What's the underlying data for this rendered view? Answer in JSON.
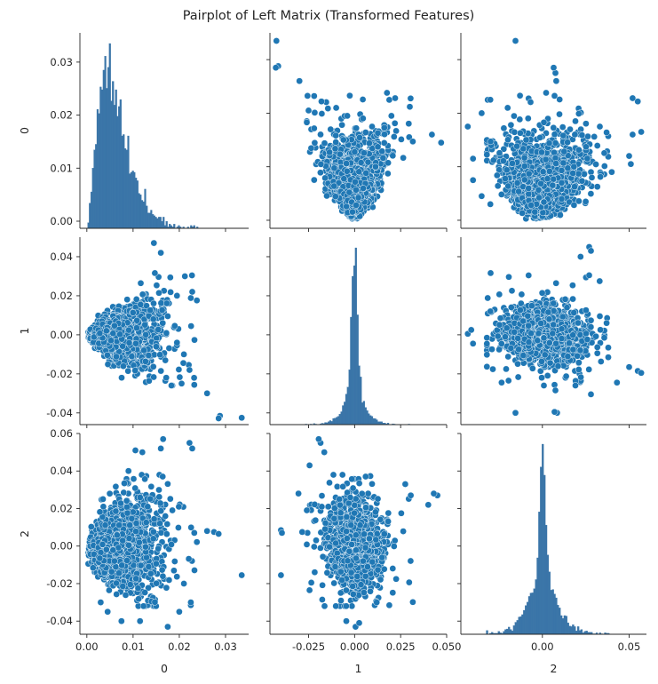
{
  "chart_data": {
    "type": "pairplot",
    "title": "Pairplot of Left Matrix (Transformed Features)",
    "variables": [
      "0",
      "1",
      "2"
    ],
    "colors": {
      "marker": "#1f77b4",
      "hist": "#3a75a8",
      "edge": "#ffffff",
      "axis": "#262626"
    },
    "axes": {
      "0": {
        "range": [
          -0.0015,
          0.035
        ],
        "ticks": [
          0.0,
          0.01,
          0.02,
          0.03
        ],
        "tick_labels": [
          "0.00",
          "0.01",
          "0.02",
          "0.03"
        ],
        "y_ticks": [
          0.0,
          0.01,
          0.02,
          0.03
        ],
        "y_tick_labels": [
          "0.00",
          "0.01",
          "0.02",
          "0.03"
        ]
      },
      "1": {
        "range": [
          -0.046,
          0.05
        ],
        "ticks": [
          -0.025,
          0.0,
          0.025,
          0.05
        ],
        "tick_labels": [
          "-0.025",
          "0.000",
          "0.025",
          "0.050"
        ],
        "y_ticks": [
          -0.04,
          -0.02,
          0.0,
          0.02,
          0.04
        ],
        "y_tick_labels": [
          "-0.04",
          "-0.02",
          "0.00",
          "0.02",
          "0.04"
        ]
      },
      "2": {
        "range": [
          -0.047,
          0.06
        ],
        "ticks": [
          0.0,
          0.05
        ],
        "tick_labels": [
          "0.00",
          "0.05"
        ],
        "y_ticks": [
          -0.04,
          -0.02,
          0.0,
          0.02,
          0.04,
          0.06
        ],
        "y_tick_labels": [
          "-0.04",
          "-0.02",
          "0.00",
          "0.02",
          "0.04",
          "0.06"
        ]
      }
    },
    "diagonal": {
      "0": {
        "shape": "right-skewed",
        "peak": 0.0033,
        "spread": 0.0055,
        "max_density_label": 0.0335
      },
      "1": {
        "shape": "peaked",
        "center": 0.0,
        "spread": 0.004
      },
      "2": {
        "shape": "peaked",
        "center": 0.0,
        "spread": 0.0045
      }
    },
    "outliers": {
      "0_1": [
        [
          0.0335,
          -0.0425
        ],
        [
          0.0288,
          -0.0415
        ],
        [
          0.0285,
          -0.0428
        ],
        [
          0.026,
          -0.03
        ],
        [
          0.0232,
          -0.022
        ],
        [
          0.0222,
          -0.018
        ],
        [
          0.0205,
          -0.025
        ],
        [
          0.021,
          -0.01
        ],
        [
          0.0195,
          -0.004
        ],
        [
          0.0195,
          0.02
        ],
        [
          0.0228,
          0.022
        ],
        [
          0.0212,
          0.03
        ],
        [
          0.0145,
          0.047
        ],
        [
          0.016,
          0.042
        ]
      ],
      "0_2": [
        [
          0.0335,
          -0.0155
        ],
        [
          0.0275,
          0.0075
        ],
        [
          0.0285,
          0.0065
        ],
        [
          0.026,
          0.008
        ],
        [
          0.0222,
          0.055
        ],
        [
          0.0228,
          0.052
        ],
        [
          0.0165,
          0.057
        ],
        [
          0.016,
          0.052
        ],
        [
          0.012,
          0.05
        ],
        [
          0.0105,
          0.051
        ],
        [
          0.009,
          0.04
        ],
        [
          0.0035,
          0.025
        ],
        [
          0.003,
          -0.03
        ],
        [
          0.0045,
          -0.035
        ],
        [
          0.0075,
          -0.04
        ],
        [
          0.0115,
          -0.04
        ],
        [
          0.0175,
          -0.043
        ],
        [
          0.02,
          -0.035
        ],
        [
          0.0225,
          -0.03
        ],
        [
          0.021,
          -0.02
        ]
      ],
      "1_2": [
        [
          -0.04,
          0.0085
        ],
        [
          -0.0395,
          0.007
        ],
        [
          -0.04,
          -0.0155
        ],
        [
          -0.0245,
          0.043
        ],
        [
          -0.0305,
          0.028
        ],
        [
          -0.0285,
          0.0075
        ],
        [
          -0.0235,
          -0.0195
        ],
        [
          -0.0245,
          -0.0235
        ],
        [
          -0.0185,
          0.055
        ],
        [
          -0.0195,
          0.057
        ],
        [
          -0.0165,
          0.05
        ],
        [
          -0.0045,
          -0.04
        ],
        [
          0.0005,
          -0.043
        ],
        [
          0.0025,
          -0.041
        ],
        [
          0.0275,
          0.033
        ],
        [
          0.0305,
          0.027
        ],
        [
          0.045,
          0.027
        ],
        [
          0.043,
          0.028
        ],
        [
          0.04,
          0.022
        ],
        [
          0.012,
          -0.03
        ]
      ]
    }
  }
}
